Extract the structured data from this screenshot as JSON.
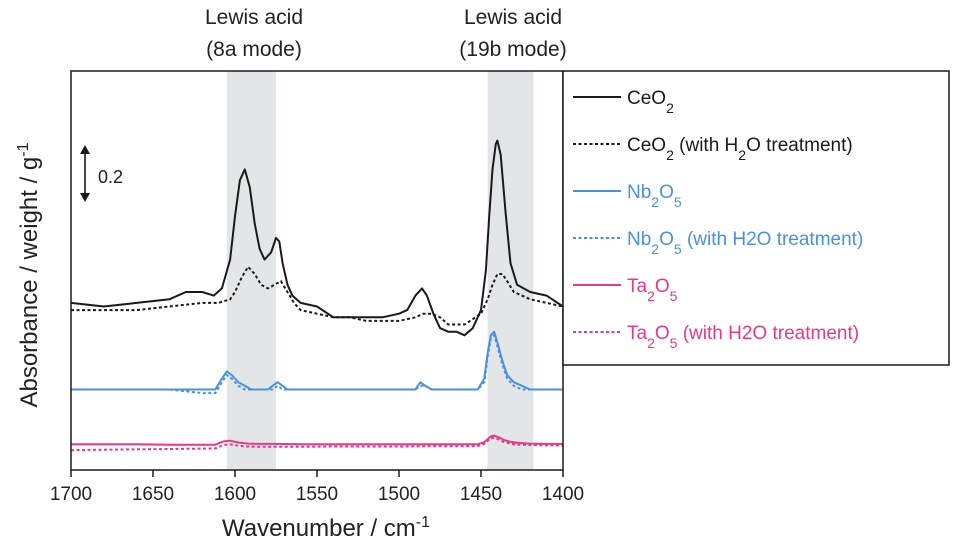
{
  "chart_data": {
    "type": "line",
    "xlabel": {
      "text": "Wavenumber / cm",
      "sup": "-1"
    },
    "ylabel": {
      "text": "Absorbance / weight / g",
      "sup": "-1"
    },
    "xlim": [
      1700,
      1400
    ],
    "x_ticks": [
      "1700",
      "1650",
      "1600",
      "1550",
      "1500",
      "1450",
      "1400"
    ],
    "x_tick_values": [
      1700,
      1650,
      1600,
      1550,
      1500,
      1450,
      1400
    ],
    "ylim": [
      -0.02,
      1.0
    ],
    "y_ticks_shown": false,
    "scale_bar": {
      "label": "0.2",
      "value": 0.2
    },
    "bands": [
      {
        "line1": "Lewis acid",
        "line2": "(8a mode)",
        "range": [
          1605,
          1575
        ]
      },
      {
        "line1": "Lewis acid",
        "line2": "(19b mode)",
        "range": [
          1446,
          1418
        ]
      }
    ],
    "series": [
      {
        "name": "CeO2",
        "legend": {
          "pre": "CeO",
          "s1": "2",
          "mid": "",
          "s2": "",
          "post": ""
        },
        "color": "#1a1a1a",
        "dash": "solid",
        "x": [
          1700,
          1680,
          1660,
          1640,
          1630,
          1620,
          1613,
          1608,
          1603,
          1600,
          1597,
          1594,
          1591,
          1588,
          1585,
          1582,
          1578,
          1575,
          1573,
          1571,
          1568,
          1565,
          1560,
          1550,
          1540,
          1530,
          1520,
          1510,
          1500,
          1495,
          1490,
          1486,
          1483,
          1479,
          1475,
          1470,
          1465,
          1460,
          1455,
          1450,
          1447,
          1445,
          1443,
          1441,
          1440,
          1438,
          1435,
          1432,
          1428,
          1420,
          1410,
          1400
        ],
        "y": [
          0.41,
          0.4,
          0.41,
          0.42,
          0.44,
          0.44,
          0.43,
          0.45,
          0.53,
          0.65,
          0.75,
          0.78,
          0.73,
          0.63,
          0.56,
          0.53,
          0.55,
          0.59,
          0.58,
          0.52,
          0.46,
          0.43,
          0.41,
          0.4,
          0.37,
          0.37,
          0.37,
          0.37,
          0.38,
          0.39,
          0.43,
          0.45,
          0.43,
          0.38,
          0.34,
          0.33,
          0.33,
          0.32,
          0.34,
          0.39,
          0.5,
          0.65,
          0.78,
          0.85,
          0.86,
          0.82,
          0.66,
          0.52,
          0.46,
          0.44,
          0.43,
          0.4
        ]
      },
      {
        "name": "CeO2 (with H2O treatment)",
        "legend": {
          "pre": "CeO",
          "s1": "2",
          "mid": " (with H",
          "s2": "2",
          "post": "O treatment)"
        },
        "color": "#1a1a1a",
        "dash": "dotted",
        "x": [
          1700,
          1680,
          1660,
          1640,
          1620,
          1610,
          1603,
          1600,
          1596,
          1592,
          1588,
          1584,
          1580,
          1576,
          1572,
          1568,
          1564,
          1560,
          1550,
          1540,
          1530,
          1520,
          1510,
          1500,
          1490,
          1485,
          1480,
          1475,
          1470,
          1460,
          1450,
          1446,
          1443,
          1440,
          1437,
          1434,
          1430,
          1425,
          1420,
          1410,
          1400
        ],
        "y": [
          0.39,
          0.39,
          0.39,
          0.4,
          0.41,
          0.41,
          0.42,
          0.44,
          0.48,
          0.51,
          0.49,
          0.46,
          0.45,
          0.46,
          0.47,
          0.44,
          0.41,
          0.39,
          0.38,
          0.37,
          0.37,
          0.36,
          0.36,
          0.36,
          0.37,
          0.38,
          0.38,
          0.37,
          0.35,
          0.35,
          0.38,
          0.42,
          0.46,
          0.49,
          0.49,
          0.47,
          0.44,
          0.43,
          0.42,
          0.41,
          0.4
        ]
      },
      {
        "name": "Nb2O5",
        "legend": {
          "pre": "Nb",
          "s1": "2",
          "mid": "O",
          "s2": "5",
          "post": ""
        },
        "color": "#4a90e2",
        "dash": "solid",
        "x": [
          1700,
          1680,
          1660,
          1640,
          1620,
          1612,
          1608,
          1605,
          1602,
          1598,
          1594,
          1590,
          1585,
          1580,
          1577,
          1574,
          1571,
          1568,
          1560,
          1540,
          1520,
          1500,
          1490,
          1487,
          1484,
          1480,
          1470,
          1460,
          1452,
          1448,
          1446,
          1444,
          1442,
          1440,
          1437,
          1434,
          1430,
          1425,
          1420,
          1410,
          1400
        ],
        "y": [
          0.17,
          0.17,
          0.17,
          0.17,
          0.17,
          0.17,
          0.2,
          0.22,
          0.21,
          0.19,
          0.18,
          0.17,
          0.17,
          0.17,
          0.18,
          0.19,
          0.18,
          0.17,
          0.17,
          0.17,
          0.17,
          0.17,
          0.17,
          0.19,
          0.18,
          0.17,
          0.17,
          0.17,
          0.17,
          0.2,
          0.27,
          0.32,
          0.33,
          0.3,
          0.25,
          0.21,
          0.19,
          0.18,
          0.17,
          0.17,
          0.17
        ]
      },
      {
        "name": "Nb2O5 (with H2O treatment)",
        "legend": {
          "pre": "Nb",
          "s1": "2",
          "mid": "O",
          "s2": "5",
          "post": " (with H2O treatment)"
        },
        "color": "#4a90e2",
        "dash": "dotted",
        "x": [
          1700,
          1680,
          1660,
          1640,
          1620,
          1612,
          1608,
          1605,
          1602,
          1598,
          1594,
          1590,
          1585,
          1580,
          1577,
          1574,
          1571,
          1568,
          1560,
          1540,
          1520,
          1500,
          1490,
          1487,
          1484,
          1480,
          1470,
          1460,
          1452,
          1448,
          1446,
          1444,
          1442,
          1440,
          1437,
          1434,
          1430,
          1425,
          1420,
          1410,
          1400
        ],
        "y": [
          0.17,
          0.17,
          0.17,
          0.17,
          0.16,
          0.16,
          0.19,
          0.21,
          0.2,
          0.18,
          0.17,
          0.17,
          0.17,
          0.17,
          0.17,
          0.18,
          0.17,
          0.17,
          0.17,
          0.17,
          0.17,
          0.17,
          0.17,
          0.18,
          0.18,
          0.17,
          0.17,
          0.17,
          0.17,
          0.19,
          0.26,
          0.31,
          0.32,
          0.29,
          0.24,
          0.2,
          0.18,
          0.17,
          0.17,
          0.17,
          0.17
        ]
      },
      {
        "name": "Ta2O5",
        "legend": {
          "pre": "Ta",
          "s1": "2",
          "mid": "O",
          "s2": "5",
          "post": ""
        },
        "color": "#e8388a",
        "dash": "solid",
        "x": [
          1700,
          1680,
          1660,
          1640,
          1620,
          1612,
          1607,
          1603,
          1598,
          1592,
          1585,
          1575,
          1560,
          1540,
          1520,
          1500,
          1480,
          1460,
          1452,
          1448,
          1446,
          1444,
          1442,
          1439,
          1436,
          1432,
          1428,
          1420,
          1410,
          1400
        ],
        "y": [
          0.018,
          0.018,
          0.018,
          0.017,
          0.017,
          0.017,
          0.026,
          0.028,
          0.023,
          0.02,
          0.019,
          0.019,
          0.018,
          0.018,
          0.018,
          0.018,
          0.018,
          0.018,
          0.018,
          0.024,
          0.032,
          0.04,
          0.042,
          0.037,
          0.03,
          0.025,
          0.022,
          0.02,
          0.019,
          0.019
        ]
      },
      {
        "name": "Ta2O5 (with H2O treatment)",
        "legend": {
          "pre": "Ta",
          "s1": "2",
          "mid": "O",
          "s2": "5",
          "post": " (with H2O treatment)"
        },
        "color": "#e8388a",
        "dash": "dotted",
        "x": [
          1700,
          1680,
          1660,
          1640,
          1620,
          1612,
          1607,
          1603,
          1598,
          1592,
          1585,
          1575,
          1560,
          1540,
          1520,
          1500,
          1480,
          1460,
          1452,
          1448,
          1446,
          1444,
          1442,
          1439,
          1436,
          1432,
          1428,
          1420,
          1410,
          1400
        ],
        "y": [
          0.002,
          0.003,
          0.004,
          0.005,
          0.006,
          0.007,
          0.016,
          0.018,
          0.014,
          0.012,
          0.011,
          0.011,
          0.011,
          0.012,
          0.012,
          0.012,
          0.013,
          0.013,
          0.013,
          0.019,
          0.027,
          0.035,
          0.036,
          0.031,
          0.024,
          0.02,
          0.017,
          0.016,
          0.015,
          0.015
        ]
      }
    ]
  }
}
